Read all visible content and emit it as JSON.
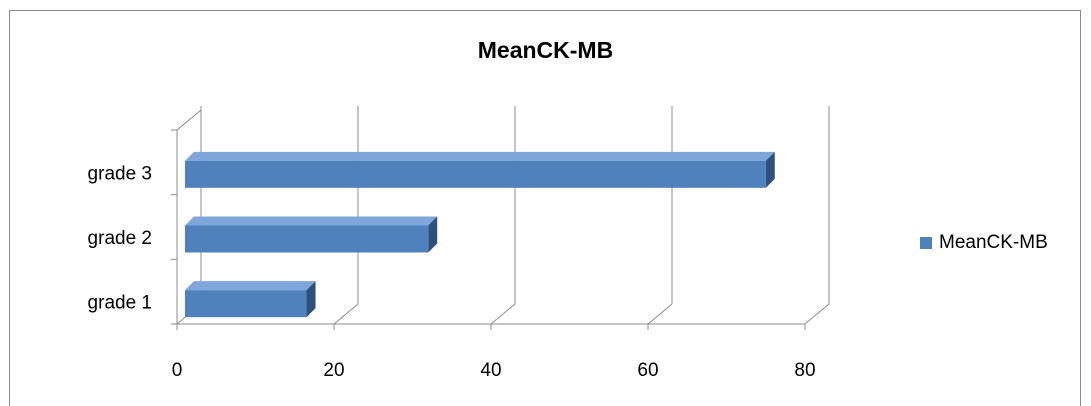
{
  "chart_data": {
    "type": "bar",
    "orientation": "horizontal",
    "style": "3d",
    "title": "MeanCK-MB",
    "categories": [
      "grade 1",
      "grade 2",
      "grade 3"
    ],
    "series": [
      {
        "name": "MeanCK-MB",
        "values": [
          16.5,
          32,
          75
        ],
        "color": "#4f81bd"
      }
    ],
    "xlim": [
      0,
      80
    ],
    "xticks": [
      "0",
      "20",
      "40",
      "60",
      "80"
    ],
    "xlabel": "",
    "ylabel": "",
    "grid": true,
    "legend_position": "right"
  }
}
